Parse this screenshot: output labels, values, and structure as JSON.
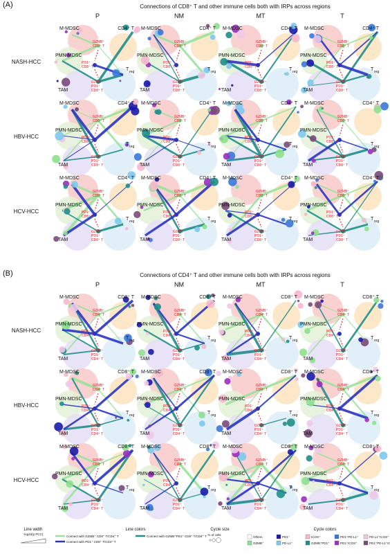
{
  "panels": [
    {
      "tag": "(A)",
      "title": "Connections of CD8⁺ T and other immune cells both with IRPs across regions",
      "partner_label": "CD4⁺ T",
      "lbl_gz": [
        "GZMB⁺",
        "CD8⁺ T"
      ],
      "lbl_pd": [
        "PD1⁺",
        "CD8⁺ T"
      ],
      "lbl_both": [
        "GZMB⁺",
        "PD1⁺",
        "CD8⁺ T"
      ]
    },
    {
      "tag": "(B)",
      "title": "Connections of CD4⁺ T and other immune cells both with IRPs across regions",
      "partner_label": "CD8⁺ T",
      "lbl_gz": [
        "GZMB⁺",
        "CD4⁺ T"
      ],
      "lbl_pd": [
        "PD1⁺",
        "CD4⁺ T"
      ],
      "lbl_both": [
        "GZMB⁺",
        "PD1⁺",
        "CD4⁺ T"
      ]
    }
  ],
  "columns": [
    "P",
    "NM",
    "MT",
    "T"
  ],
  "rows": [
    "NASH-HCC",
    "HBV-HCC",
    "HCV-HCC"
  ],
  "cell_labels": {
    "mmdsc": "M-MDSC",
    "pmn": "PMN-MDSC",
    "tam": "TAM",
    "treg_base": "T",
    "treg_sub": "reg"
  },
  "legend": {
    "line_width_title": "Line width",
    "line_width_sub": "-log10(p PCC)",
    "line_colors_title": "Line colors",
    "line_colors": [
      {
        "label": "Connect with GZMB⁺ CD8⁺ T/CD4⁺ T",
        "color": "#9be39b"
      },
      {
        "label": "Connect with GZMB⁺PD1⁺ CD8⁺ T/CD4⁺ T",
        "color": "#1f8f8a"
      },
      {
        "label": "Connect with PD1⁺ CD8⁺ T/CD4⁺ T",
        "color": "#2b35c4"
      }
    ],
    "cycle_size_title": "Cycle size",
    "cycle_size_sub": "% of cells",
    "cycle_colors_title": "Cycle colors",
    "cycle_colors": [
      {
        "label": "Others",
        "color": "#ffffff"
      },
      {
        "label": "GZMB⁺",
        "color": "#8ee08e"
      },
      {
        "label": "PD1⁺",
        "color": "#1a1aa8"
      },
      {
        "label": "PD-L1⁺",
        "color": "#7ec8f0"
      },
      {
        "label": "ICOS⁺",
        "color": "#f6b8cc"
      },
      {
        "label": "GZMB⁺PD1⁺",
        "color": "#1f8f8a"
      },
      {
        "label": "PD1⁺PD-L1⁺",
        "color": "#3a78d8"
      },
      {
        "label": "PD1⁺ICOS⁺",
        "color": "#9b2fc0"
      },
      {
        "label": "PD-L1⁺ICOS⁺",
        "color": "#f0c8e8"
      },
      {
        "label": "PD1⁺PD-L1⁺ICOS⁺",
        "color": "#7a4a7a"
      }
    ]
  },
  "colors": {
    "red_label": "#e0141e",
    "gzmb_line": "#9be39b",
    "both_line": "#1f8f8a",
    "pd1_line": "#2b35c4",
    "bg_mmdsc": "#f9c9c9",
    "bg_cd": "#fde3c0",
    "bg_pmn": "#e3f1d6",
    "bg_tam": "#e4def5",
    "bg_treg": "#dcecf8"
  }
}
